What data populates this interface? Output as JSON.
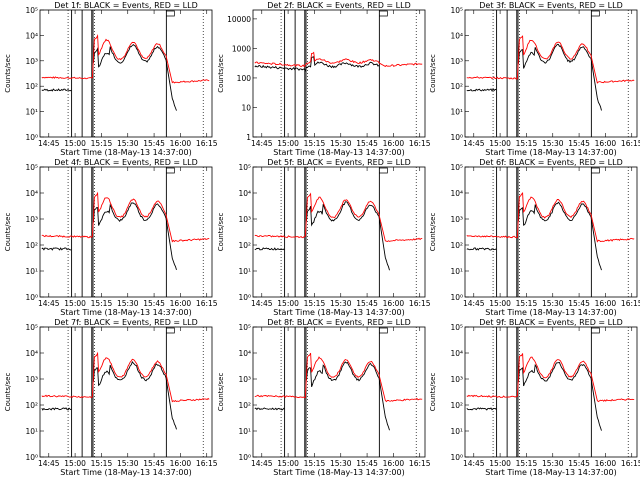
{
  "chart_data": [
    {
      "type": "line",
      "panel": 1,
      "title": "Det 1f: BLACK = Events, RED = LLD",
      "xlabel": "Start Time (18-May-13 14:37:00)",
      "ylabel": "Counts/sec",
      "y_scale": "log",
      "ylim": [
        1,
        100000
      ],
      "x_ticks": [
        "14:45",
        "15:00",
        "15:15",
        "15:30",
        "15:45",
        "16:00",
        "16:15"
      ],
      "y_ticks": [
        "10⁰",
        "10¹",
        "10²",
        "10³",
        "10⁴",
        "10⁵"
      ],
      "series": [
        {
          "name": "Events",
          "color": "#000000"
        },
        {
          "name": "LLD",
          "color": "#ff0000"
        }
      ]
    },
    {
      "type": "line",
      "panel": 2,
      "title": "Det 2f: BLACK = Events, RED = LLD",
      "xlabel": "Start Time (18-May-13 14:37:00)",
      "ylabel": "Counts/sec",
      "y_scale": "log",
      "ylim": [
        1,
        20000
      ],
      "x_ticks": [
        "14:45",
        "15:00",
        "15:15",
        "15:30",
        "15:45",
        "16:00",
        "16:15"
      ],
      "y_ticks": [
        "1",
        "10",
        "100",
        "1000",
        "10000"
      ],
      "series": [
        {
          "name": "Events",
          "color": "#000000"
        },
        {
          "name": "LLD",
          "color": "#ff0000"
        }
      ]
    },
    {
      "type": "line",
      "panel": 3,
      "title": "Det 3f: BLACK = Events, RED = LLD",
      "xlabel": "Start Time (18-May-13 14:37:00)",
      "ylabel": "Counts/sec",
      "y_scale": "log",
      "ylim": [
        1,
        100000
      ],
      "x_ticks": [
        "14:45",
        "15:00",
        "15:15",
        "15:30",
        "15:45",
        "16:00",
        "16:15"
      ],
      "y_ticks": [
        "10⁰",
        "10¹",
        "10²",
        "10³",
        "10⁴",
        "10⁵"
      ],
      "series": [
        {
          "name": "Events",
          "color": "#000000"
        },
        {
          "name": "LLD",
          "color": "#ff0000"
        }
      ]
    },
    {
      "type": "line",
      "panel": 4,
      "title": "Det 4f: BLACK = Events, RED = LLD",
      "xlabel": "Start Time (18-May-13 14:37:00)",
      "ylabel": "Counts/sec",
      "y_scale": "log",
      "ylim": [
        1,
        100000
      ],
      "x_ticks": [
        "14:45",
        "15:00",
        "15:15",
        "15:30",
        "15:45",
        "16:00",
        "16:15"
      ],
      "y_ticks": [
        "10⁰",
        "10¹",
        "10²",
        "10³",
        "10⁴",
        "10⁵"
      ],
      "series": [
        {
          "name": "Events",
          "color": "#000000"
        },
        {
          "name": "LLD",
          "color": "#ff0000"
        }
      ]
    },
    {
      "type": "line",
      "panel": 5,
      "title": "Det 5f: BLACK = Events, RED = LLD",
      "xlabel": "Start Time (18-May-13 14:37:00)",
      "ylabel": "Counts/sec",
      "y_scale": "log",
      "ylim": [
        1,
        100000
      ],
      "x_ticks": [
        "14:45",
        "15:00",
        "15:15",
        "15:30",
        "15:45",
        "16:00",
        "16:15"
      ],
      "y_ticks": [
        "10⁰",
        "10¹",
        "10²",
        "10³",
        "10⁴",
        "10⁵"
      ],
      "series": [
        {
          "name": "Events",
          "color": "#000000"
        },
        {
          "name": "LLD",
          "color": "#ff0000"
        }
      ]
    },
    {
      "type": "line",
      "panel": 6,
      "title": "Det 6f: BLACK = Events, RED = LLD",
      "xlabel": "Start Time (18-May-13 14:37:00)",
      "ylabel": "Counts/sec",
      "y_scale": "log",
      "ylim": [
        1,
        100000
      ],
      "x_ticks": [
        "14:45",
        "15:00",
        "15:15",
        "15:30",
        "15:45",
        "16:00",
        "16:15"
      ],
      "y_ticks": [
        "10⁰",
        "10¹",
        "10²",
        "10³",
        "10⁴",
        "10⁵"
      ],
      "series": [
        {
          "name": "Events",
          "color": "#000000"
        },
        {
          "name": "LLD",
          "color": "#ff0000"
        }
      ]
    },
    {
      "type": "line",
      "panel": 7,
      "title": "Det 7f: BLACK = Events, RED = LLD",
      "xlabel": "Start Time (18-May-13 14:37:00)",
      "ylabel": "Counts/sec",
      "y_scale": "log",
      "ylim": [
        1,
        100000
      ],
      "x_ticks": [
        "14:45",
        "15:00",
        "15:15",
        "15:30",
        "15:45",
        "16:00",
        "16:15"
      ],
      "y_ticks": [
        "10⁰",
        "10¹",
        "10²",
        "10³",
        "10⁴",
        "10⁵"
      ],
      "series": [
        {
          "name": "Events",
          "color": "#000000"
        },
        {
          "name": "LLD",
          "color": "#ff0000"
        }
      ]
    },
    {
      "type": "line",
      "panel": 8,
      "title": "Det 8f: BLACK = Events, RED = LLD",
      "xlabel": "Start Time (18-May-13 14:37:00)",
      "ylabel": "Counts/sec",
      "y_scale": "log",
      "ylim": [
        1,
        100000
      ],
      "x_ticks": [
        "14:45",
        "15:00",
        "15:15",
        "15:30",
        "15:45",
        "16:00",
        "16:15"
      ],
      "y_ticks": [
        "10⁰",
        "10¹",
        "10²",
        "10³",
        "10⁴",
        "10⁵"
      ],
      "series": [
        {
          "name": "Events",
          "color": "#000000"
        },
        {
          "name": "LLD",
          "color": "#ff0000"
        }
      ]
    },
    {
      "type": "line",
      "panel": 9,
      "title": "Det 9f: BLACK = Events, RED = LLD",
      "xlabel": "Start Time (18-May-13 14:37:00)",
      "ylabel": "Counts/sec",
      "y_scale": "log",
      "ylim": [
        1,
        100000
      ],
      "x_ticks": [
        "14:45",
        "15:00",
        "15:15",
        "15:30",
        "15:45",
        "16:00",
        "16:15"
      ],
      "y_ticks": [
        "10⁰",
        "10¹",
        "10²",
        "10³",
        "10⁴",
        "10⁵"
      ],
      "series": [
        {
          "name": "Events",
          "color": "#000000"
        },
        {
          "name": "LLD",
          "color": "#ff0000"
        }
      ]
    }
  ]
}
